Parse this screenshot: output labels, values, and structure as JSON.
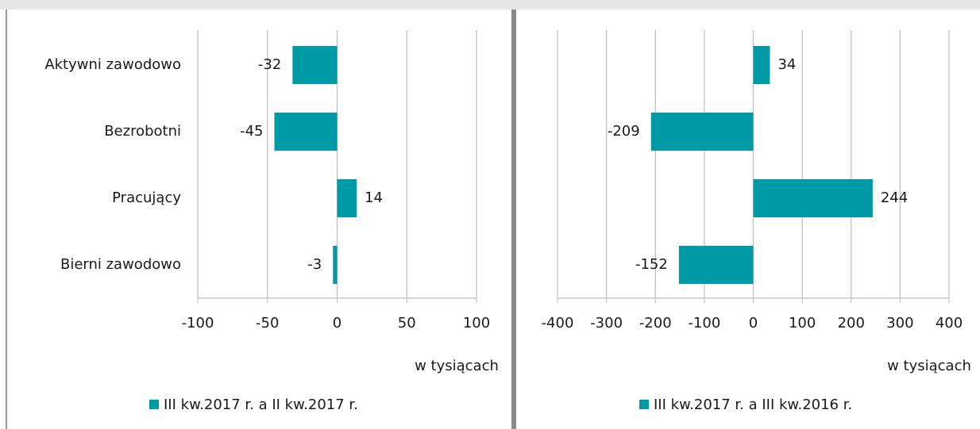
{
  "chart_data": [
    {
      "type": "bar",
      "orientation": "horizontal",
      "categories": [
        "Aktywni zawodowo",
        "Bezrobotni",
        "Pracujący",
        "Bierni zawodowo"
      ],
      "series": [
        {
          "name": "III kw.2017 r. a II kw.2017 r.",
          "color": "#009aa6",
          "values": [
            -32,
            -45,
            14,
            -3
          ]
        }
      ],
      "xlim": [
        -100,
        100
      ],
      "xticks": [
        -100,
        -50,
        0,
        50,
        100
      ],
      "xlabel": "w tysiącach",
      "grid": true,
      "legend": "bottom"
    },
    {
      "type": "bar",
      "orientation": "horizontal",
      "categories": [
        null,
        null,
        null,
        null
      ],
      "series": [
        {
          "name": "III kw.2017 r. a III kw.2016 r.",
          "color": "#009aa6",
          "values": [
            34,
            -209,
            244,
            -152
          ]
        }
      ],
      "xlim": [
        -400,
        400
      ],
      "xticks": [
        -400,
        -300,
        -200,
        -100,
        0,
        100,
        200,
        300,
        400
      ],
      "xlabel": "w tysiącach",
      "grid": true,
      "legend": "bottom"
    }
  ]
}
